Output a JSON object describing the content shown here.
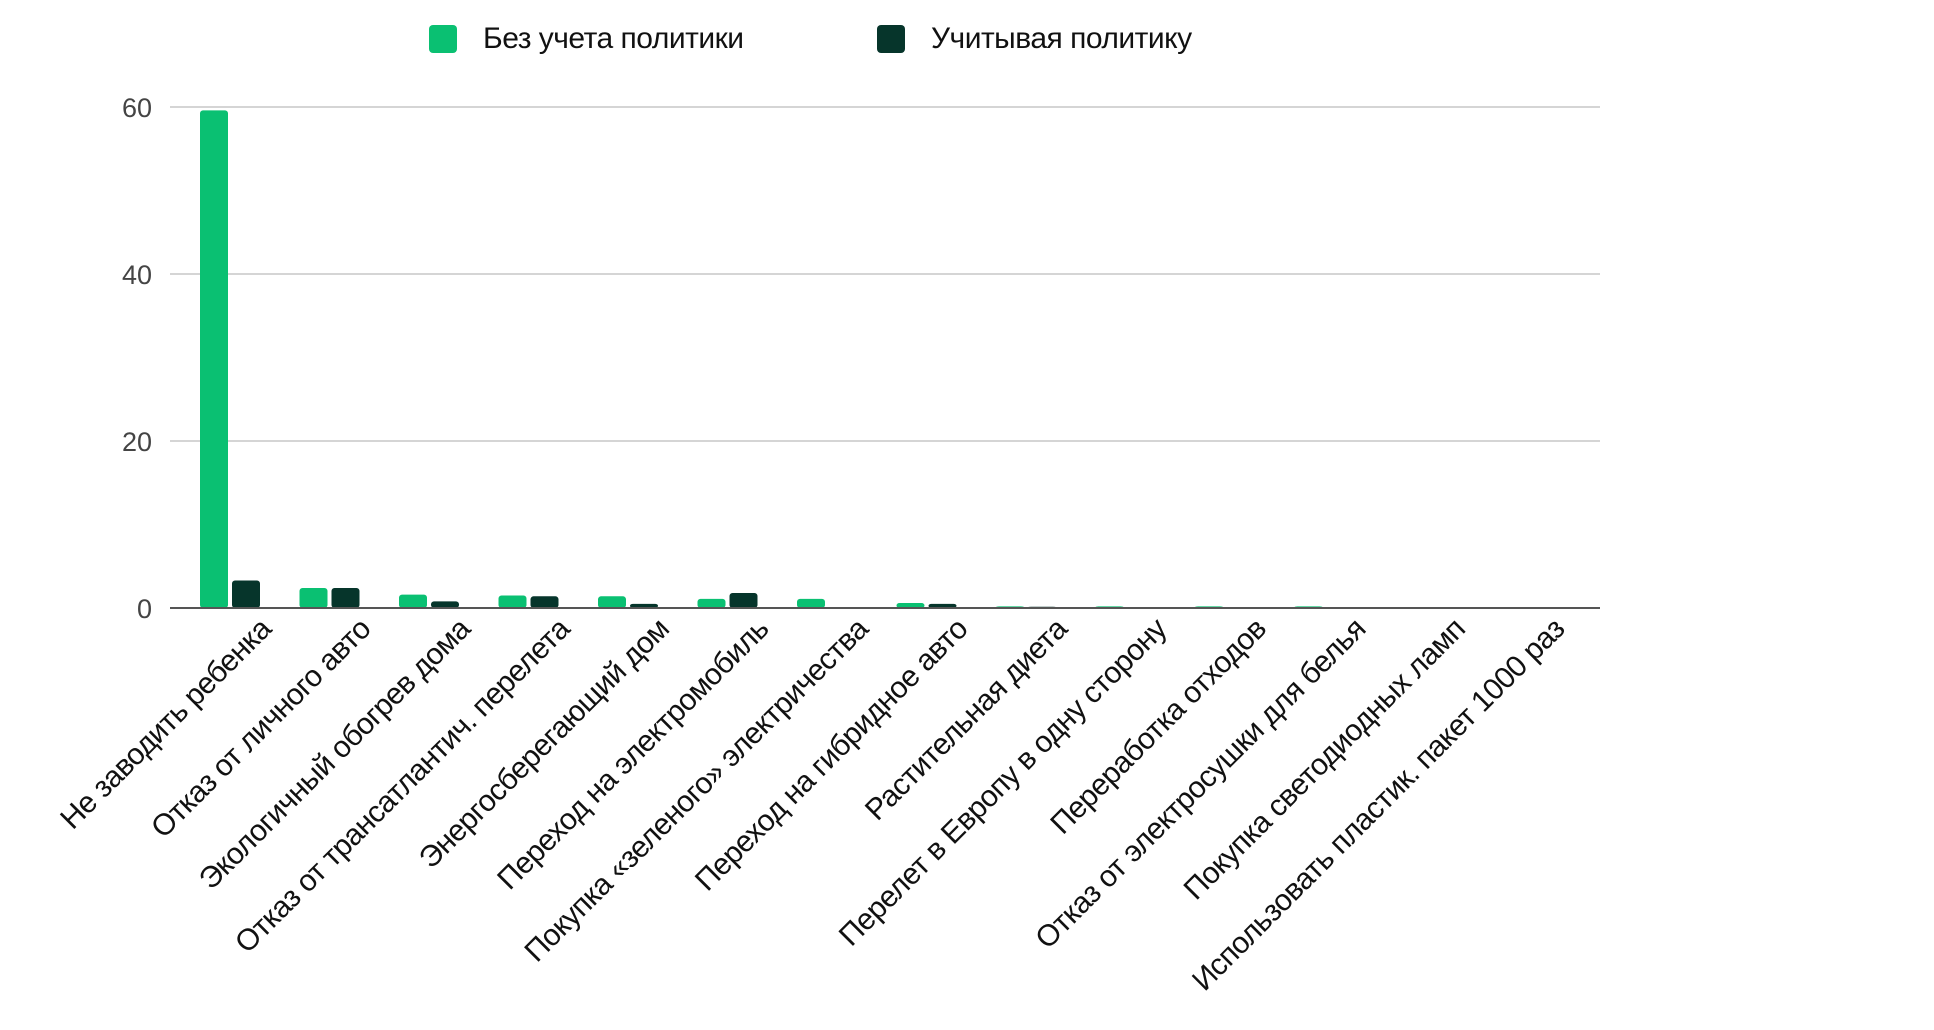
{
  "colors": {
    "series1": "#0ac072",
    "series2": "#06352b",
    "grid": "#d5d5d5",
    "axis": "#555555"
  },
  "chart_data": {
    "type": "bar",
    "title": "",
    "xlabel": "",
    "ylabel": "",
    "ylim": [
      0,
      60
    ],
    "yticks": [
      "0",
      "20",
      "40",
      "60"
    ],
    "grid": true,
    "legend_position": "top-center",
    "categories": [
      "Не заводить ребенка",
      "Отказ от личного авто",
      "Экологичный обогрев дома",
      "Отказ от трансатлантич. перелета",
      "Энергосберегающий дом",
      "Переход на электромобиль",
      "Покупка «зеленого» электричества",
      "Переход на гибридное авто",
      "Растительная диета",
      "Перелет в Европу в одну сторону",
      "Переработка отходов",
      "Отказ от электросушки для белья",
      "Покупка светодиодных ламп",
      "Использовать пластик. пакет 1000 раз"
    ],
    "series": [
      {
        "name": "Без учета политики",
        "values": [
          59.6,
          2.4,
          1.6,
          1.5,
          1.4,
          1.1,
          1.1,
          0.6,
          0.2,
          0.2,
          0.2,
          0.2,
          0.04,
          0.02
        ]
      },
      {
        "name": "Учитывая политику",
        "values": [
          3.3,
          2.4,
          0.8,
          1.4,
          0.5,
          1.8,
          0.0,
          0.5,
          0.15,
          0.05,
          0.1,
          0.05,
          0.02,
          0.01
        ]
      }
    ]
  }
}
